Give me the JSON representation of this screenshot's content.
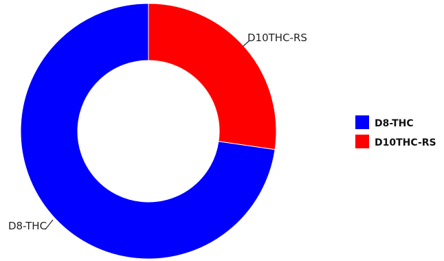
{
  "chart_data": {
    "type": "pie",
    "donut": true,
    "legend_position": "right",
    "slices": [
      {
        "label": "D10THC-RS",
        "value": 27.3,
        "color": "#ff0000"
      },
      {
        "label": "D8-THC",
        "value": 72.7,
        "color": "#0000ff"
      }
    ],
    "legend": [
      {
        "label": "D8-THC",
        "color": "#0000ff"
      },
      {
        "label": "D10THC-RS",
        "color": "#ff0000"
      }
    ]
  }
}
